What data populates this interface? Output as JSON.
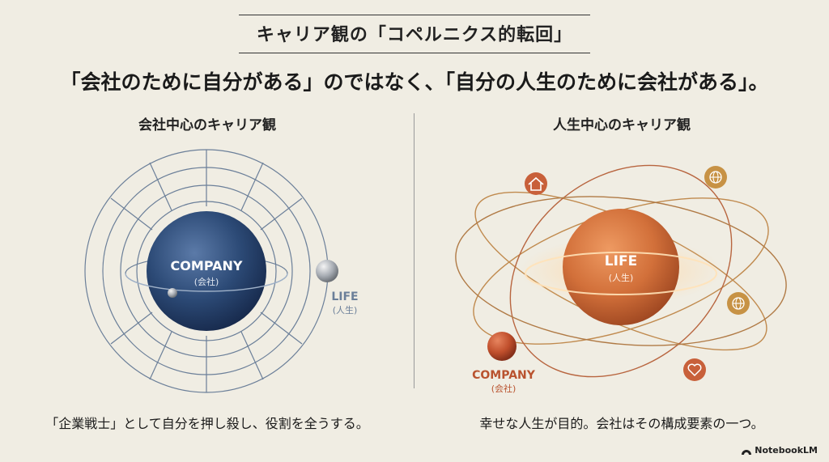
{
  "title": "キャリア観の「コペルニクス的転回」",
  "subtitle": "「会社のために自分がある」のではなく、「自分の人生のために会社がある」。",
  "left": {
    "heading": "会社中心のキャリア観",
    "center_label": "COMPANY",
    "center_sub": "(会社)",
    "orbit_label": "LIFE",
    "orbit_sub": "(人生)",
    "caption": "「企業戦士」として自分を押し殺し、役割を全うする。",
    "center_color": "#2f4d79",
    "line_color": "#6b7f99"
  },
  "right": {
    "heading": "人生中心のキャリア観",
    "center_label": "LIFE",
    "center_sub": "(人生)",
    "orbit_label": "COMPANY",
    "orbit_sub": "(会社)",
    "caption": "幸せな人生が目的。会社はその構成要素の一つ。",
    "center_color": "#d0703a",
    "line_color": "#c08a4e",
    "icons": [
      "home-icon",
      "globe-icon",
      "globe-icon",
      "heart-icon"
    ]
  },
  "brand": "NotebookLM"
}
